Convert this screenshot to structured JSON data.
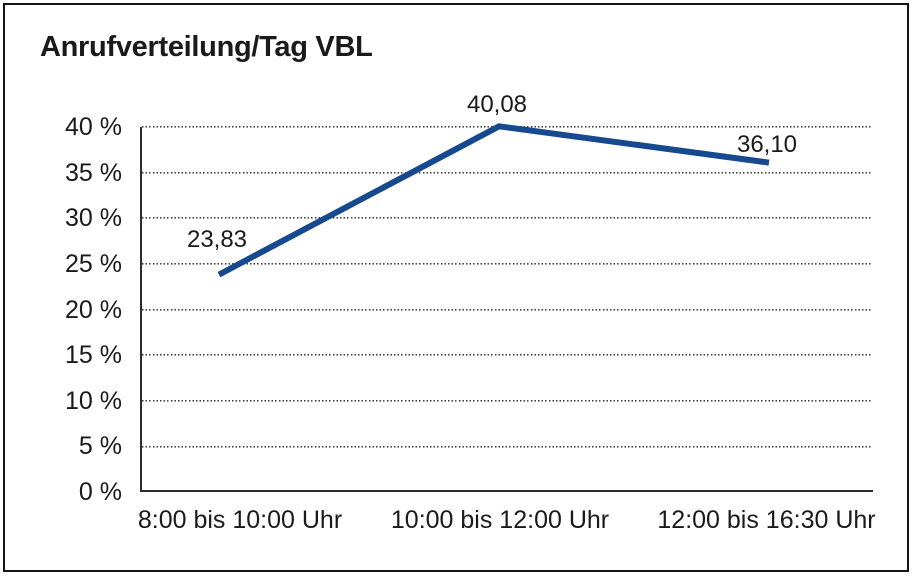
{
  "title": "Anrufverteilung/Tag VBL",
  "frame": {
    "border_color": "#161616",
    "background": "#ffffff"
  },
  "chart_data": {
    "type": "line",
    "title": "Anrufverteilung/Tag VBL",
    "categories": [
      "8:00 bis 10:00 Uhr",
      "10:00 bis 12:00 Uhr",
      "12:00 bis 16:30 Uhr"
    ],
    "series": [
      {
        "name": "Anrufverteilung/Tag VBL",
        "values": [
          23.83,
          40.08,
          36.1
        ]
      }
    ],
    "data_labels": [
      "23,83",
      "40,08",
      "36,10"
    ],
    "xlabel": "",
    "ylabel": "",
    "y_ticks": [
      "40 %",
      "35 %",
      "30 %",
      "25 %",
      "20 %",
      "15 %",
      "10 %",
      "5 %",
      "0 %"
    ],
    "ylim": [
      0,
      40
    ],
    "y_tick_step": 5,
    "grid": "horizontal-dotted",
    "legend_position": "none",
    "line_color": "#17498f",
    "axis_color": "#2d2d2d",
    "text_color": "#1a1a1a"
  }
}
